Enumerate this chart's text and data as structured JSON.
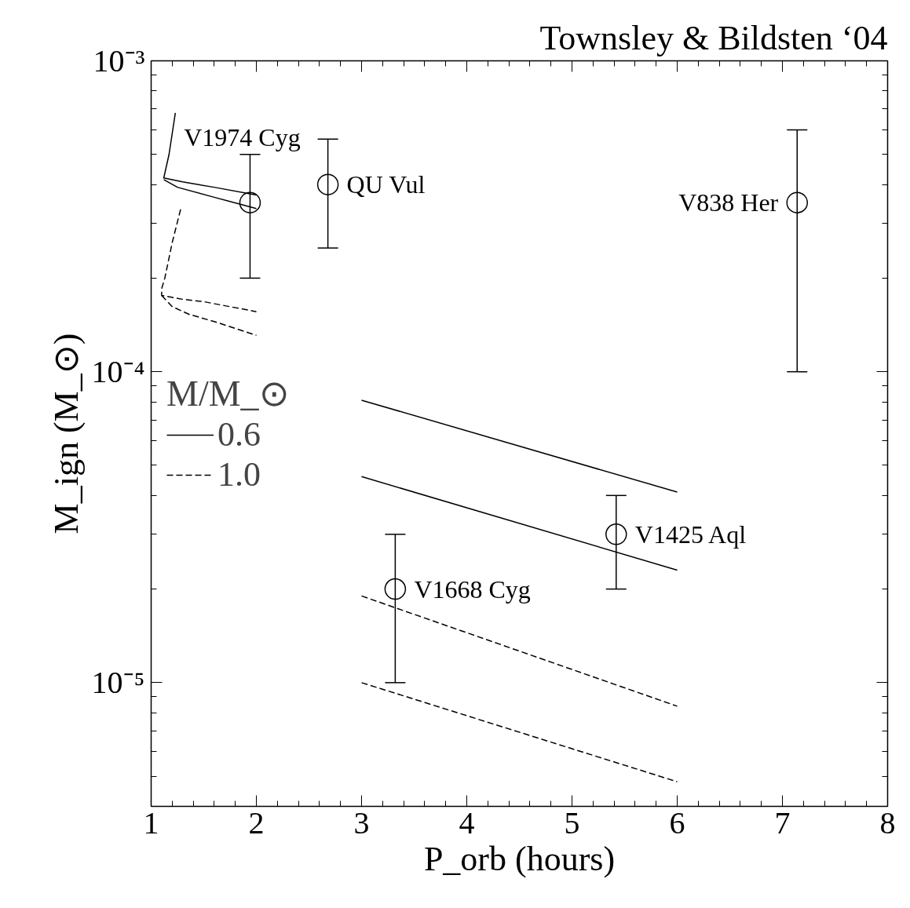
{
  "chart_data": {
    "type": "line",
    "title": "Townsley & Bildsten ‘04",
    "xlabel": "P_orb (hours)",
    "ylabel": "M_ign (M_⊙)",
    "legend_title": "M/M_⊙",
    "log": "y",
    "xlim": [
      1,
      8
    ],
    "xticks": [
      1,
      2,
      3,
      4,
      5,
      6,
      7,
      8
    ],
    "ylim": [
      4e-06,
      0.001
    ],
    "yticks": [
      {
        "value": 1e-05,
        "label": "10⁻⁵"
      },
      {
        "value": 0.0001,
        "label": "10⁻⁴"
      },
      {
        "value": 0.001,
        "label": "10⁻³"
      }
    ],
    "grid": false,
    "legend": "left",
    "series": [
      {
        "name": "0.6",
        "line_style": "solid",
        "color": "#000000",
        "x": [
          1.23,
          1.17,
          1.12,
          1.3,
          1.6,
          2.0
        ],
        "values": [
          0.00068,
          0.0005,
          0.00042,
          0.000408,
          0.000392,
          0.00037
        ]
      },
      {
        "line_style": "solid",
        "color": "#000000",
        "x": [
          1.12,
          1.25,
          1.6,
          2.0
        ],
        "values": [
          0.000415,
          0.000392,
          0.000364,
          0.000335
        ]
      },
      {
        "line_style": "solid",
        "color": "#000000",
        "x": [
          3,
          6
        ],
        "values": [
          8.1e-05,
          4.1e-05
        ]
      },
      {
        "line_style": "solid",
        "color": "#000000",
        "x": [
          3,
          6
        ],
        "values": [
          4.6e-05,
          2.3e-05
        ]
      },
      {
        "name": "1.0",
        "line_style": "dashed",
        "color": "#000000",
        "x": [
          1.28,
          1.2,
          1.13,
          1.1,
          1.1,
          1.3,
          1.5,
          2.0
        ],
        "values": [
          0.000333,
          0.00026,
          0.0002,
          0.000185,
          0.000176,
          0.000171,
          0.000168,
          0.000156
        ]
      },
      {
        "line_style": "dashed",
        "color": "#000000",
        "x": [
          1.1,
          1.2,
          1.36,
          1.6,
          2.0
        ],
        "values": [
          0.000176,
          0.000162,
          0.000153,
          0.000145,
          0.000131
        ]
      },
      {
        "line_style": "dashed",
        "color": "#000000",
        "x": [
          3,
          6
        ],
        "values": [
          1.9e-05,
          8.4e-06
        ]
      },
      {
        "line_style": "dashed",
        "color": "#000000",
        "x": [
          3,
          6
        ],
        "values": [
          1e-05,
          4.8e-06
        ]
      },
      {
        "type": "scatter",
        "marker": "circle",
        "color": "#000000",
        "x": [
          1.94,
          2.68,
          7.14,
          5.42,
          3.32
        ],
        "values": [
          0.00035,
          0.0004,
          0.00035,
          3e-05,
          2e-05
        ],
        "errors": [
          [
            0.0002,
            0.0005
          ],
          [
            0.00025,
            0.00056
          ],
          [
            0.0001,
            0.0006
          ],
          [
            2e-05,
            4e-05
          ],
          [
            1e-05,
            3e-05
          ]
        ]
      }
    ],
    "annotations": [
      {
        "text": "V1974 Cyg",
        "x": 1.94,
        "y": 0.00035
      },
      {
        "text": "QU Vul",
        "x": 2.68,
        "y": 0.0004
      },
      {
        "text": "V838 Her",
        "x": 7.14,
        "y": 0.00035
      },
      {
        "text": "V1425 Aql",
        "x": 5.42,
        "y": 3e-05
      },
      {
        "text": "V1668 Cyg",
        "x": 3.32,
        "y": 2e-05
      }
    ]
  }
}
